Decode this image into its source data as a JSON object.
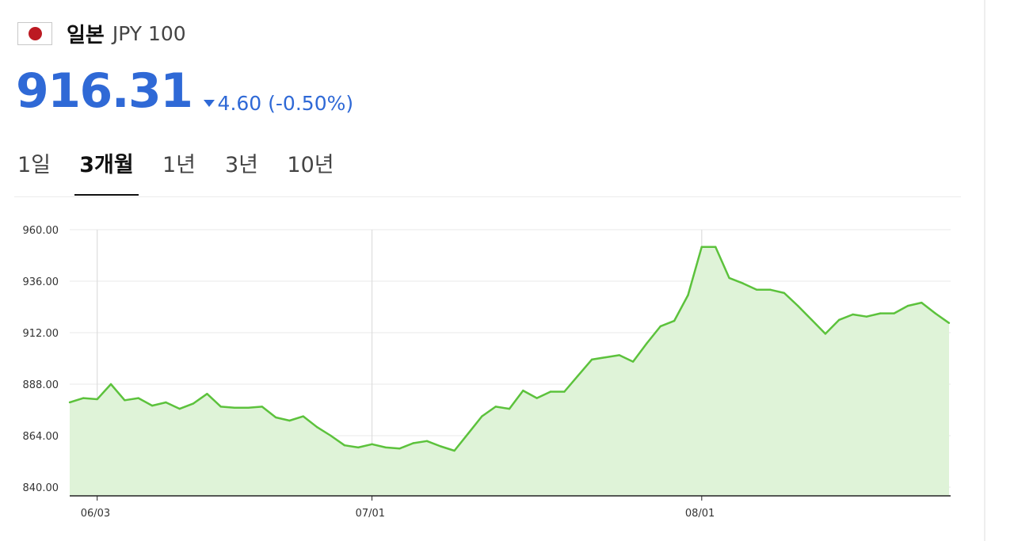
{
  "header": {
    "flag_icon": "japan-flag-icon",
    "country": "일본",
    "code": "JPY 100"
  },
  "quote": {
    "price": "916.31",
    "direction": "down",
    "change": "4.60 (-0.50%)",
    "color": "#2f69d6"
  },
  "tabs": [
    {
      "label": "1일",
      "active": false
    },
    {
      "label": "3개월",
      "active": true
    },
    {
      "label": "1년",
      "active": false
    },
    {
      "label": "3년",
      "active": false
    },
    {
      "label": "10년",
      "active": false
    }
  ],
  "chart_data": {
    "type": "area",
    "line_color": "#5cc23c",
    "fill_color": "#dff3d8",
    "grid": true,
    "yticks": [
      "960.00",
      "936.00",
      "912.00",
      "888.00",
      "864.00",
      "840.00"
    ],
    "ylim": [
      840,
      960
    ],
    "xticks": [
      "06/03",
      "07/01",
      "08/01"
    ],
    "xtick_index": [
      2,
      22,
      46
    ],
    "series": [
      {
        "values": [
          879.5,
          881.5,
          881,
          888,
          880.5,
          881.5,
          878,
          879.5,
          876.5,
          879,
          883.5,
          877.5,
          877,
          877,
          877.5,
          872.5,
          871,
          873,
          868,
          864,
          859.5,
          858.5,
          860,
          858.5,
          858,
          860.5,
          861.5,
          859,
          857,
          865,
          873,
          877.5,
          876.5,
          885,
          881.5,
          884.5,
          884.5,
          892,
          899.5,
          900.5,
          901.5,
          898.5,
          907,
          915,
          917.5,
          929.5,
          952,
          952,
          937.5,
          935,
          932,
          932,
          930.5,
          924.5,
          918,
          911.5,
          918,
          920.5,
          919.5,
          921,
          921,
          924.5,
          926,
          921,
          916.5
        ]
      }
    ]
  }
}
